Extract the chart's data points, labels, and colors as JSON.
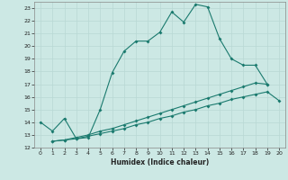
{
  "xlabel": "Humidex (Indice chaleur)",
  "line_color": "#1a7a6e",
  "background_color": "#cce8e4",
  "grid_color": "#b8d8d4",
  "xlim": [
    -0.5,
    20.5
  ],
  "ylim": [
    12,
    23.5
  ],
  "xticks": [
    0,
    1,
    2,
    3,
    4,
    5,
    6,
    7,
    8,
    9,
    10,
    11,
    12,
    13,
    14,
    15,
    16,
    17,
    18,
    19,
    20
  ],
  "yticks": [
    12,
    13,
    14,
    15,
    16,
    17,
    18,
    19,
    20,
    21,
    22,
    23
  ],
  "curve1_x": [
    0,
    1,
    2,
    3,
    4,
    5,
    6,
    7,
    8,
    9,
    10,
    11,
    12,
    13,
    14,
    15,
    16,
    17,
    18,
    19
  ],
  "curve1_y": [
    14.0,
    13.3,
    14.3,
    12.7,
    12.8,
    15.0,
    17.9,
    19.6,
    20.4,
    20.4,
    21.1,
    22.7,
    21.9,
    23.3,
    23.1,
    20.6,
    19.0,
    18.5,
    18.5,
    17.0
  ],
  "curve2_x": [
    1,
    2,
    3,
    4,
    5,
    6,
    7,
    8,
    9,
    10,
    11,
    12,
    13,
    14,
    15,
    16,
    17,
    18,
    19,
    20
  ],
  "curve2_y": [
    12.5,
    12.6,
    12.7,
    12.9,
    13.1,
    13.3,
    13.5,
    13.8,
    14.0,
    14.3,
    14.5,
    14.8,
    15.0,
    15.3,
    15.5,
    15.8,
    16.0,
    16.2,
    16.4,
    15.7
  ],
  "curve3_x": [
    1,
    2,
    3,
    4,
    5,
    6,
    7,
    8,
    9,
    10,
    11,
    12,
    13,
    14,
    15,
    16,
    17,
    18,
    19
  ],
  "curve3_y": [
    12.5,
    12.6,
    12.8,
    13.0,
    13.3,
    13.5,
    13.8,
    14.1,
    14.4,
    14.7,
    15.0,
    15.3,
    15.6,
    15.9,
    16.2,
    16.5,
    16.8,
    17.1,
    17.0
  ]
}
